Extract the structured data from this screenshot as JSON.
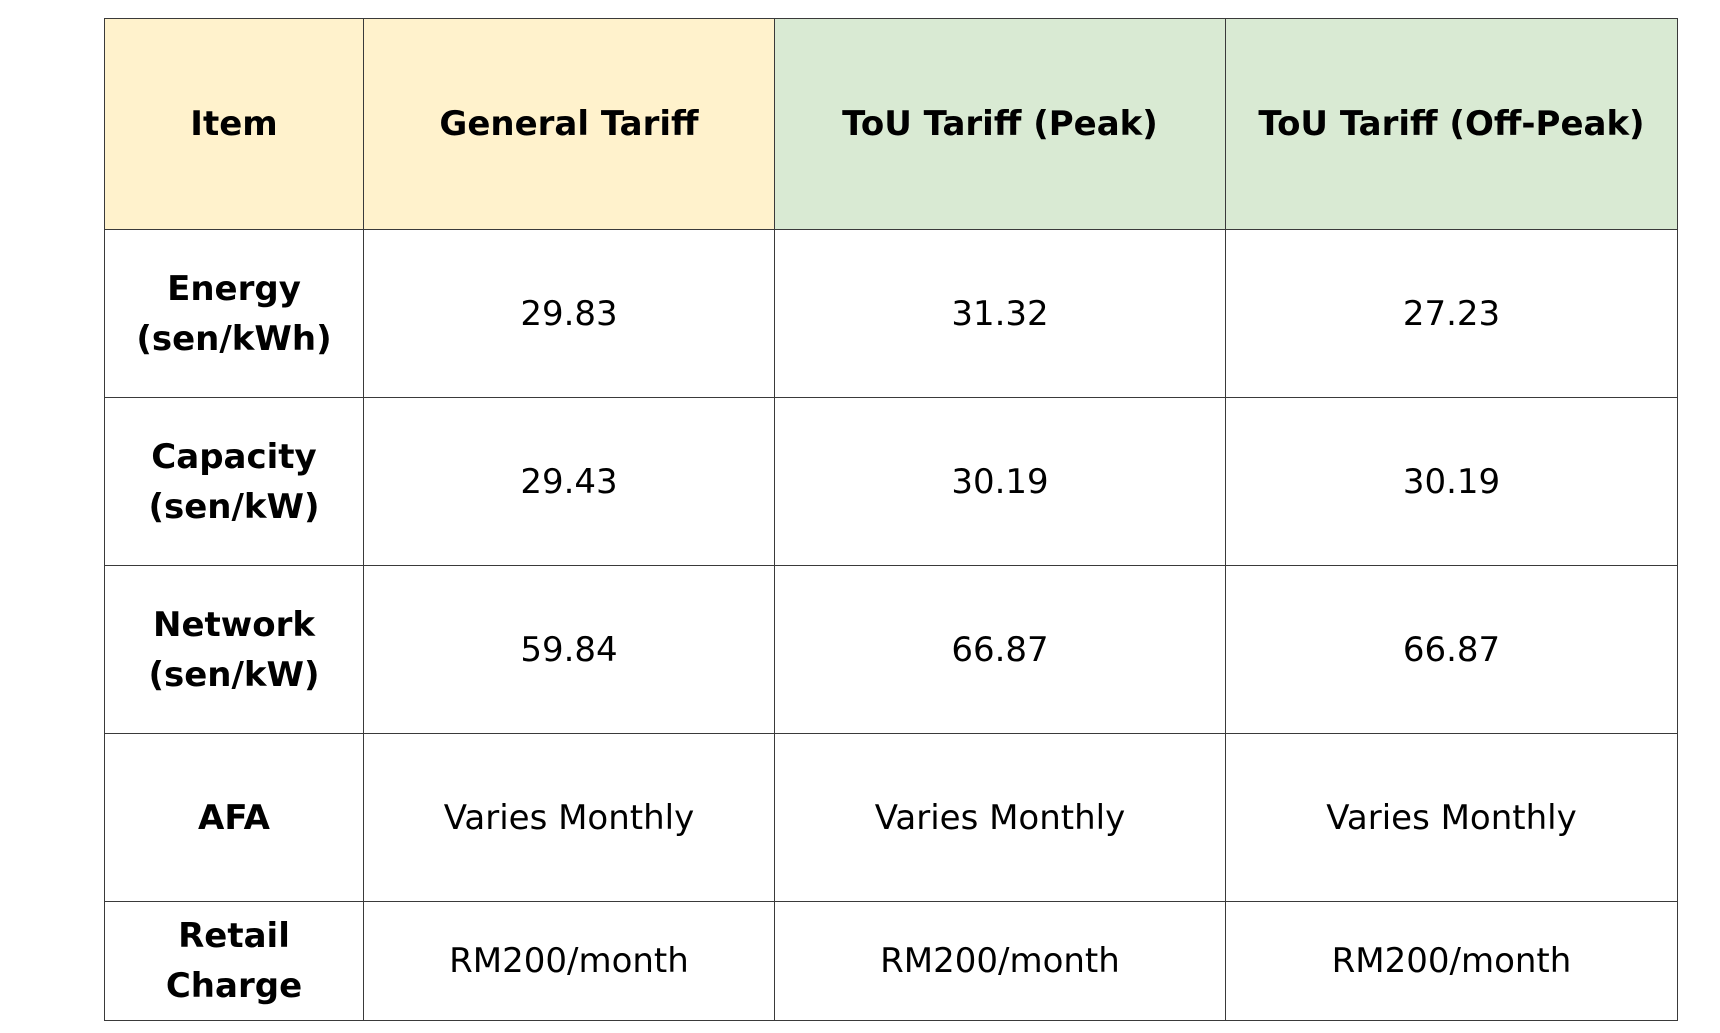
{
  "table": {
    "headers": [
      "Item",
      "General Tariff",
      "ToU Tariff (Peak)",
      "ToU Tariff (Off-Peak)"
    ],
    "rows": [
      {
        "item": [
          "Energy",
          "(sen/kWh)"
        ],
        "values": [
          "29.83",
          "31.32",
          "27.23"
        ]
      },
      {
        "item": [
          "Capacity",
          "(sen/kW)"
        ],
        "values": [
          "29.43",
          "30.19",
          "30.19"
        ]
      },
      {
        "item": [
          "Network",
          "(sen/kW)"
        ],
        "values": [
          "59.84",
          "66.87",
          "66.87"
        ]
      },
      {
        "item": [
          "AFA"
        ],
        "values": [
          "Varies Monthly",
          "Varies Monthly",
          "Varies Monthly"
        ]
      },
      {
        "item": [
          "Retail",
          "Charge"
        ],
        "values": [
          "RM200/month",
          "RM200/month",
          "RM200/month"
        ]
      }
    ]
  },
  "colors": {
    "general_header_bg": "#fff2cc",
    "tou_header_bg": "#d9ead3",
    "border": "#3a3a3a"
  }
}
